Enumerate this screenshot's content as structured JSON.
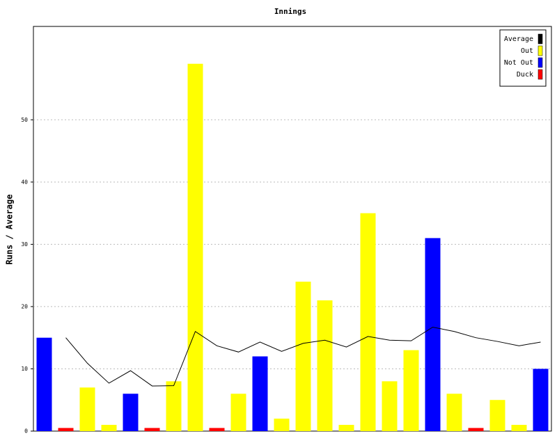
{
  "chart_data": {
    "type": "bar",
    "title": "Innings",
    "ylabel": "Runs / Average",
    "categories": [
      null,
      null,
      null,
      null,
      null,
      null,
      null,
      null,
      null,
      null,
      null,
      null,
      null,
      null,
      null,
      null,
      null,
      null,
      null,
      null,
      null,
      null,
      null,
      null
    ],
    "series": [
      {
        "name": "Average",
        "color": "#000000",
        "kind": "line",
        "values": [
          null,
          15,
          10.9,
          7.7,
          9.7,
          7.25,
          7.3,
          16,
          13.7,
          12.7,
          14.3,
          12.8,
          14.1,
          14.6,
          13.5,
          15.2,
          14.6,
          14.5,
          16.7,
          16,
          15,
          14.4,
          13.7,
          14.3
        ]
      },
      {
        "name": "Out",
        "color": "#ffff00",
        "kind": "bar",
        "values": [
          null,
          null,
          7,
          1,
          null,
          null,
          8,
          59,
          null,
          6,
          null,
          2,
          24,
          21,
          1,
          35,
          8,
          13,
          null,
          6,
          null,
          5,
          1,
          null
        ]
      },
      {
        "name": "Not Out",
        "color": "#0000ff",
        "kind": "bar",
        "values": [
          15,
          null,
          null,
          null,
          6,
          null,
          null,
          null,
          null,
          null,
          12,
          null,
          null,
          null,
          null,
          null,
          null,
          null,
          31,
          null,
          null,
          null,
          null,
          10
        ]
      },
      {
        "name": "Duck",
        "color": "#ff0000",
        "kind": "bar",
        "values": [
          null,
          0.5,
          null,
          null,
          null,
          0.5,
          null,
          null,
          0.5,
          null,
          null,
          null,
          null,
          null,
          null,
          null,
          null,
          null,
          null,
          null,
          0.5,
          null,
          null,
          null
        ]
      }
    ],
    "ylim": [
      0,
      65
    ],
    "yticks": [
      0,
      10,
      20,
      30,
      40,
      50
    ],
    "grid": true,
    "legend": "top-right"
  }
}
